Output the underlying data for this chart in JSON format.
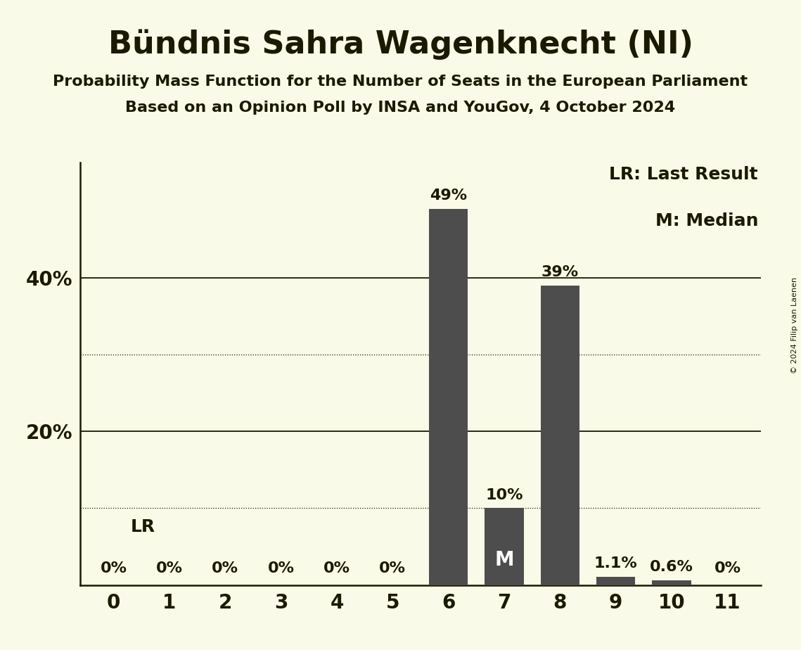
{
  "title": "Bündnis Sahra Wagenknecht (NI)",
  "subtitle1": "Probability Mass Function for the Number of Seats in the European Parliament",
  "subtitle2": "Based on an Opinion Poll by INSA and YouGov, 4 October 2024",
  "copyright": "© 2024 Filip van Laenen",
  "categories": [
    0,
    1,
    2,
    3,
    4,
    5,
    6,
    7,
    8,
    9,
    10,
    11
  ],
  "values": [
    0,
    0,
    0,
    0,
    0,
    0,
    49,
    10,
    39,
    1.1,
    0.6,
    0
  ],
  "bar_color": "#4d4d4d",
  "background_color": "#fafae8",
  "text_color": "#1a1a00",
  "ylim_max": 55,
  "solid_yticks": [
    20,
    40
  ],
  "dotted_yticks": [
    10,
    30
  ],
  "bar_labels": [
    "0%",
    "0%",
    "0%",
    "0%",
    "0%",
    "0%",
    "49%",
    "10%",
    "39%",
    "1.1%",
    "0.6%",
    "0%"
  ],
  "legend_lr": "LR: Last Result",
  "legend_m": "M: Median",
  "title_fontsize": 32,
  "subtitle_fontsize": 16,
  "bar_label_fontsize": 16,
  "axis_tick_fontsize": 20,
  "legend_fontsize": 18,
  "copyright_fontsize": 8
}
